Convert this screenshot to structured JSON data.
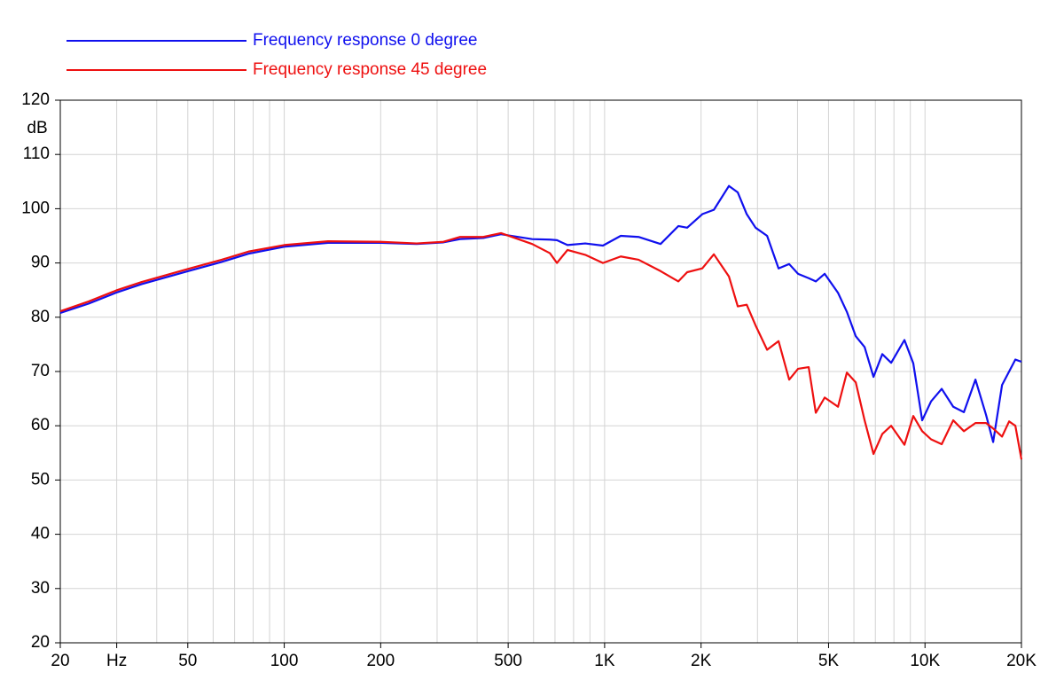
{
  "chart_data": {
    "type": "line",
    "y_label": "dB",
    "log_x": true,
    "grid": true,
    "xlim": [
      20,
      20000
    ],
    "ylim": [
      20,
      120
    ],
    "yticks": [
      20,
      30,
      40,
      50,
      60,
      70,
      80,
      90,
      100,
      110,
      120
    ],
    "xticks": [
      20,
      {
        "value": 30,
        "label": "Hz"
      },
      50,
      100,
      200,
      500,
      {
        "value": 1000,
        "label": "1K"
      },
      {
        "value": 2000,
        "label": "2K"
      },
      {
        "value": 5000,
        "label": "5K"
      },
      {
        "value": 10000,
        "label": "10K"
      },
      {
        "value": 20000,
        "label": "20K"
      }
    ],
    "xgrid": [
      20,
      30,
      40,
      50,
      60,
      70,
      80,
      90,
      100,
      200,
      300,
      400,
      500,
      600,
      700,
      800,
      900,
      1000,
      2000,
      3000,
      4000,
      5000,
      6000,
      7000,
      8000,
      9000,
      10000,
      20000
    ],
    "x": [
      20,
      24.5,
      30.1,
      35.9,
      50.1,
      63.8,
      77.3,
      100,
      137,
      200,
      259,
      314,
      354,
      418,
      475,
      594,
      675,
      710,
      766,
      870,
      988,
      1123,
      1276,
      1495,
      1699,
      1810,
      2018,
      2193,
      2444,
      2604,
      2777,
      2959,
      3215,
      3491,
      3768,
      4017,
      4335,
      4562,
      4863,
      5352,
      5703,
      6080,
      6479,
      6906,
      7358,
      7842,
      8627,
      9193,
      9800,
      10447,
      11276,
      12250,
      13226,
      14372,
      15508,
      16322,
      17398,
      18306,
      19144,
      20000
    ],
    "series": [
      {
        "name": "Frequency response 0 degree",
        "color": "#1010ee",
        "values": [
          80.8,
          82.5,
          84.6,
          86.1,
          88.5,
          90.2,
          91.7,
          93.0,
          93.7,
          93.7,
          93.5,
          93.8,
          94.4,
          94.6,
          95.3,
          94.4,
          94.3,
          94.2,
          93.3,
          93.6,
          93.2,
          95.0,
          94.8,
          93.5,
          96.8,
          96.5,
          99.0,
          99.8,
          104.2,
          103,
          99,
          96.5,
          95.0,
          89.0,
          89.8,
          88.0,
          87.2,
          86.6,
          88.0,
          84.5,
          81,
          76.5,
          74.5,
          69,
          73.2,
          71.6,
          75.8,
          71.5,
          61,
          64.5,
          66.8,
          63.5,
          62.5,
          68.5,
          62,
          57,
          67.5,
          70,
          72.2,
          71.8
        ]
      },
      {
        "name": "Frequency response 45 degree",
        "color": "#ee1010",
        "values": [
          81.1,
          82.9,
          85.0,
          86.5,
          88.9,
          90.6,
          92.1,
          93.3,
          94.0,
          93.9,
          93.6,
          93.9,
          94.8,
          94.8,
          95.5,
          93.5,
          91.8,
          90.0,
          92.4,
          91.5,
          90.0,
          91.2,
          90.6,
          88.5,
          86.6,
          88.3,
          89.0,
          91.6,
          87.5,
          82.0,
          82.3,
          78.5,
          74.0,
          75.6,
          68.5,
          70.5,
          70.8,
          62.4,
          65.2,
          63.5,
          69.8,
          68,
          61,
          54.8,
          58.5,
          60,
          56.5,
          61.8,
          59,
          57.5,
          56.6,
          61,
          59,
          60.5,
          60.5,
          59.5,
          58,
          60.8,
          60,
          53.8
        ]
      }
    ]
  }
}
